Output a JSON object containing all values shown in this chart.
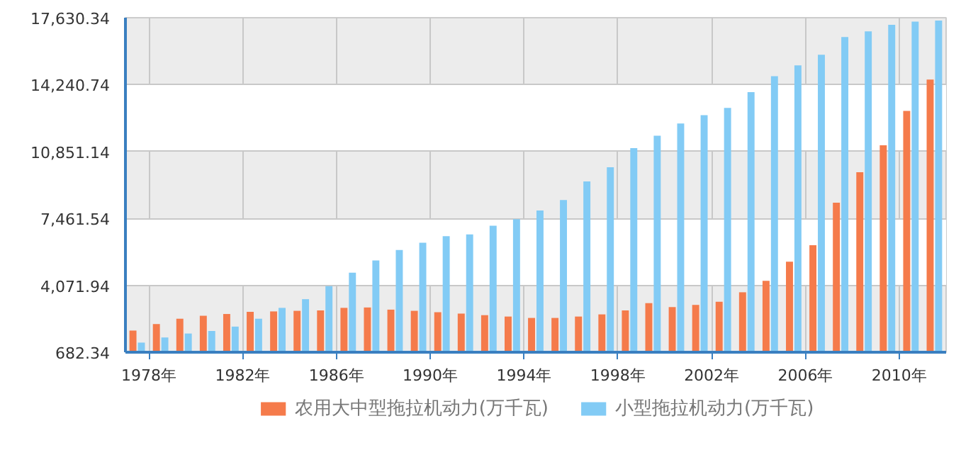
{
  "chart_data": {
    "type": "bar",
    "x": [
      1978,
      1979,
      1980,
      1981,
      1982,
      1983,
      1984,
      1985,
      1986,
      1987,
      1988,
      1989,
      1990,
      1991,
      1992,
      1993,
      1994,
      1995,
      1996,
      1997,
      1998,
      1999,
      2000,
      2001,
      2002,
      2003,
      2004,
      2005,
      2006,
      2007,
      2008,
      2009,
      2010,
      2011,
      2012
    ],
    "series": [
      {
        "name": "农用大中型拖拉机动力(万千瓦)",
        "color": "#f57b4b",
        "values": [
          1780,
          2110,
          2380,
          2530,
          2620,
          2730,
          2750,
          2780,
          2800,
          2930,
          2950,
          2840,
          2780,
          2710,
          2640,
          2560,
          2490,
          2420,
          2420,
          2490,
          2600,
          2800,
          3170,
          2970,
          3080,
          3240,
          3720,
          4300,
          5270,
          6100,
          8260,
          9800,
          11170,
          12910,
          14500
        ]
      },
      {
        "name": "小型拖拉机动力(万千瓦)",
        "color": "#82cbf5",
        "values": [
          1170,
          1430,
          1630,
          1760,
          1980,
          2380,
          2930,
          3370,
          4030,
          4710,
          5330,
          5860,
          6230,
          6560,
          6650,
          7090,
          7420,
          7860,
          8390,
          9340,
          10050,
          11020,
          11650,
          12270,
          12690,
          13060,
          13860,
          14670,
          15220,
          15750,
          16650,
          16940,
          17270,
          17430,
          17490
        ]
      }
    ],
    "xlim": [
      1977.5,
      2012.5
    ],
    "xticks": [
      {
        "value": 1978.5,
        "label": "1978年"
      },
      {
        "value": 1982.5,
        "label": "1982年"
      },
      {
        "value": 1986.5,
        "label": "1986年"
      },
      {
        "value": 1990.5,
        "label": "1990年"
      },
      {
        "value": 1994.5,
        "label": "1994年"
      },
      {
        "value": 1998.5,
        "label": "1998年"
      },
      {
        "value": 2002.5,
        "label": "2002年"
      },
      {
        "value": 2006.5,
        "label": "2006年"
      },
      {
        "value": 2010.5,
        "label": "2010年"
      }
    ],
    "ylim": [
      682.34,
      17630.34
    ],
    "yticks": [
      {
        "value": 682.34,
        "label": "682.34"
      },
      {
        "value": 4071.94,
        "label": "4,071.94"
      },
      {
        "value": 7461.54,
        "label": "7,461.54"
      },
      {
        "value": 10851.14,
        "label": "10,851.14"
      },
      {
        "value": 14240.74,
        "label": "14,240.74"
      },
      {
        "value": 17630.34,
        "label": "17,630.34"
      }
    ],
    "grid": true,
    "legend": "bottom"
  }
}
